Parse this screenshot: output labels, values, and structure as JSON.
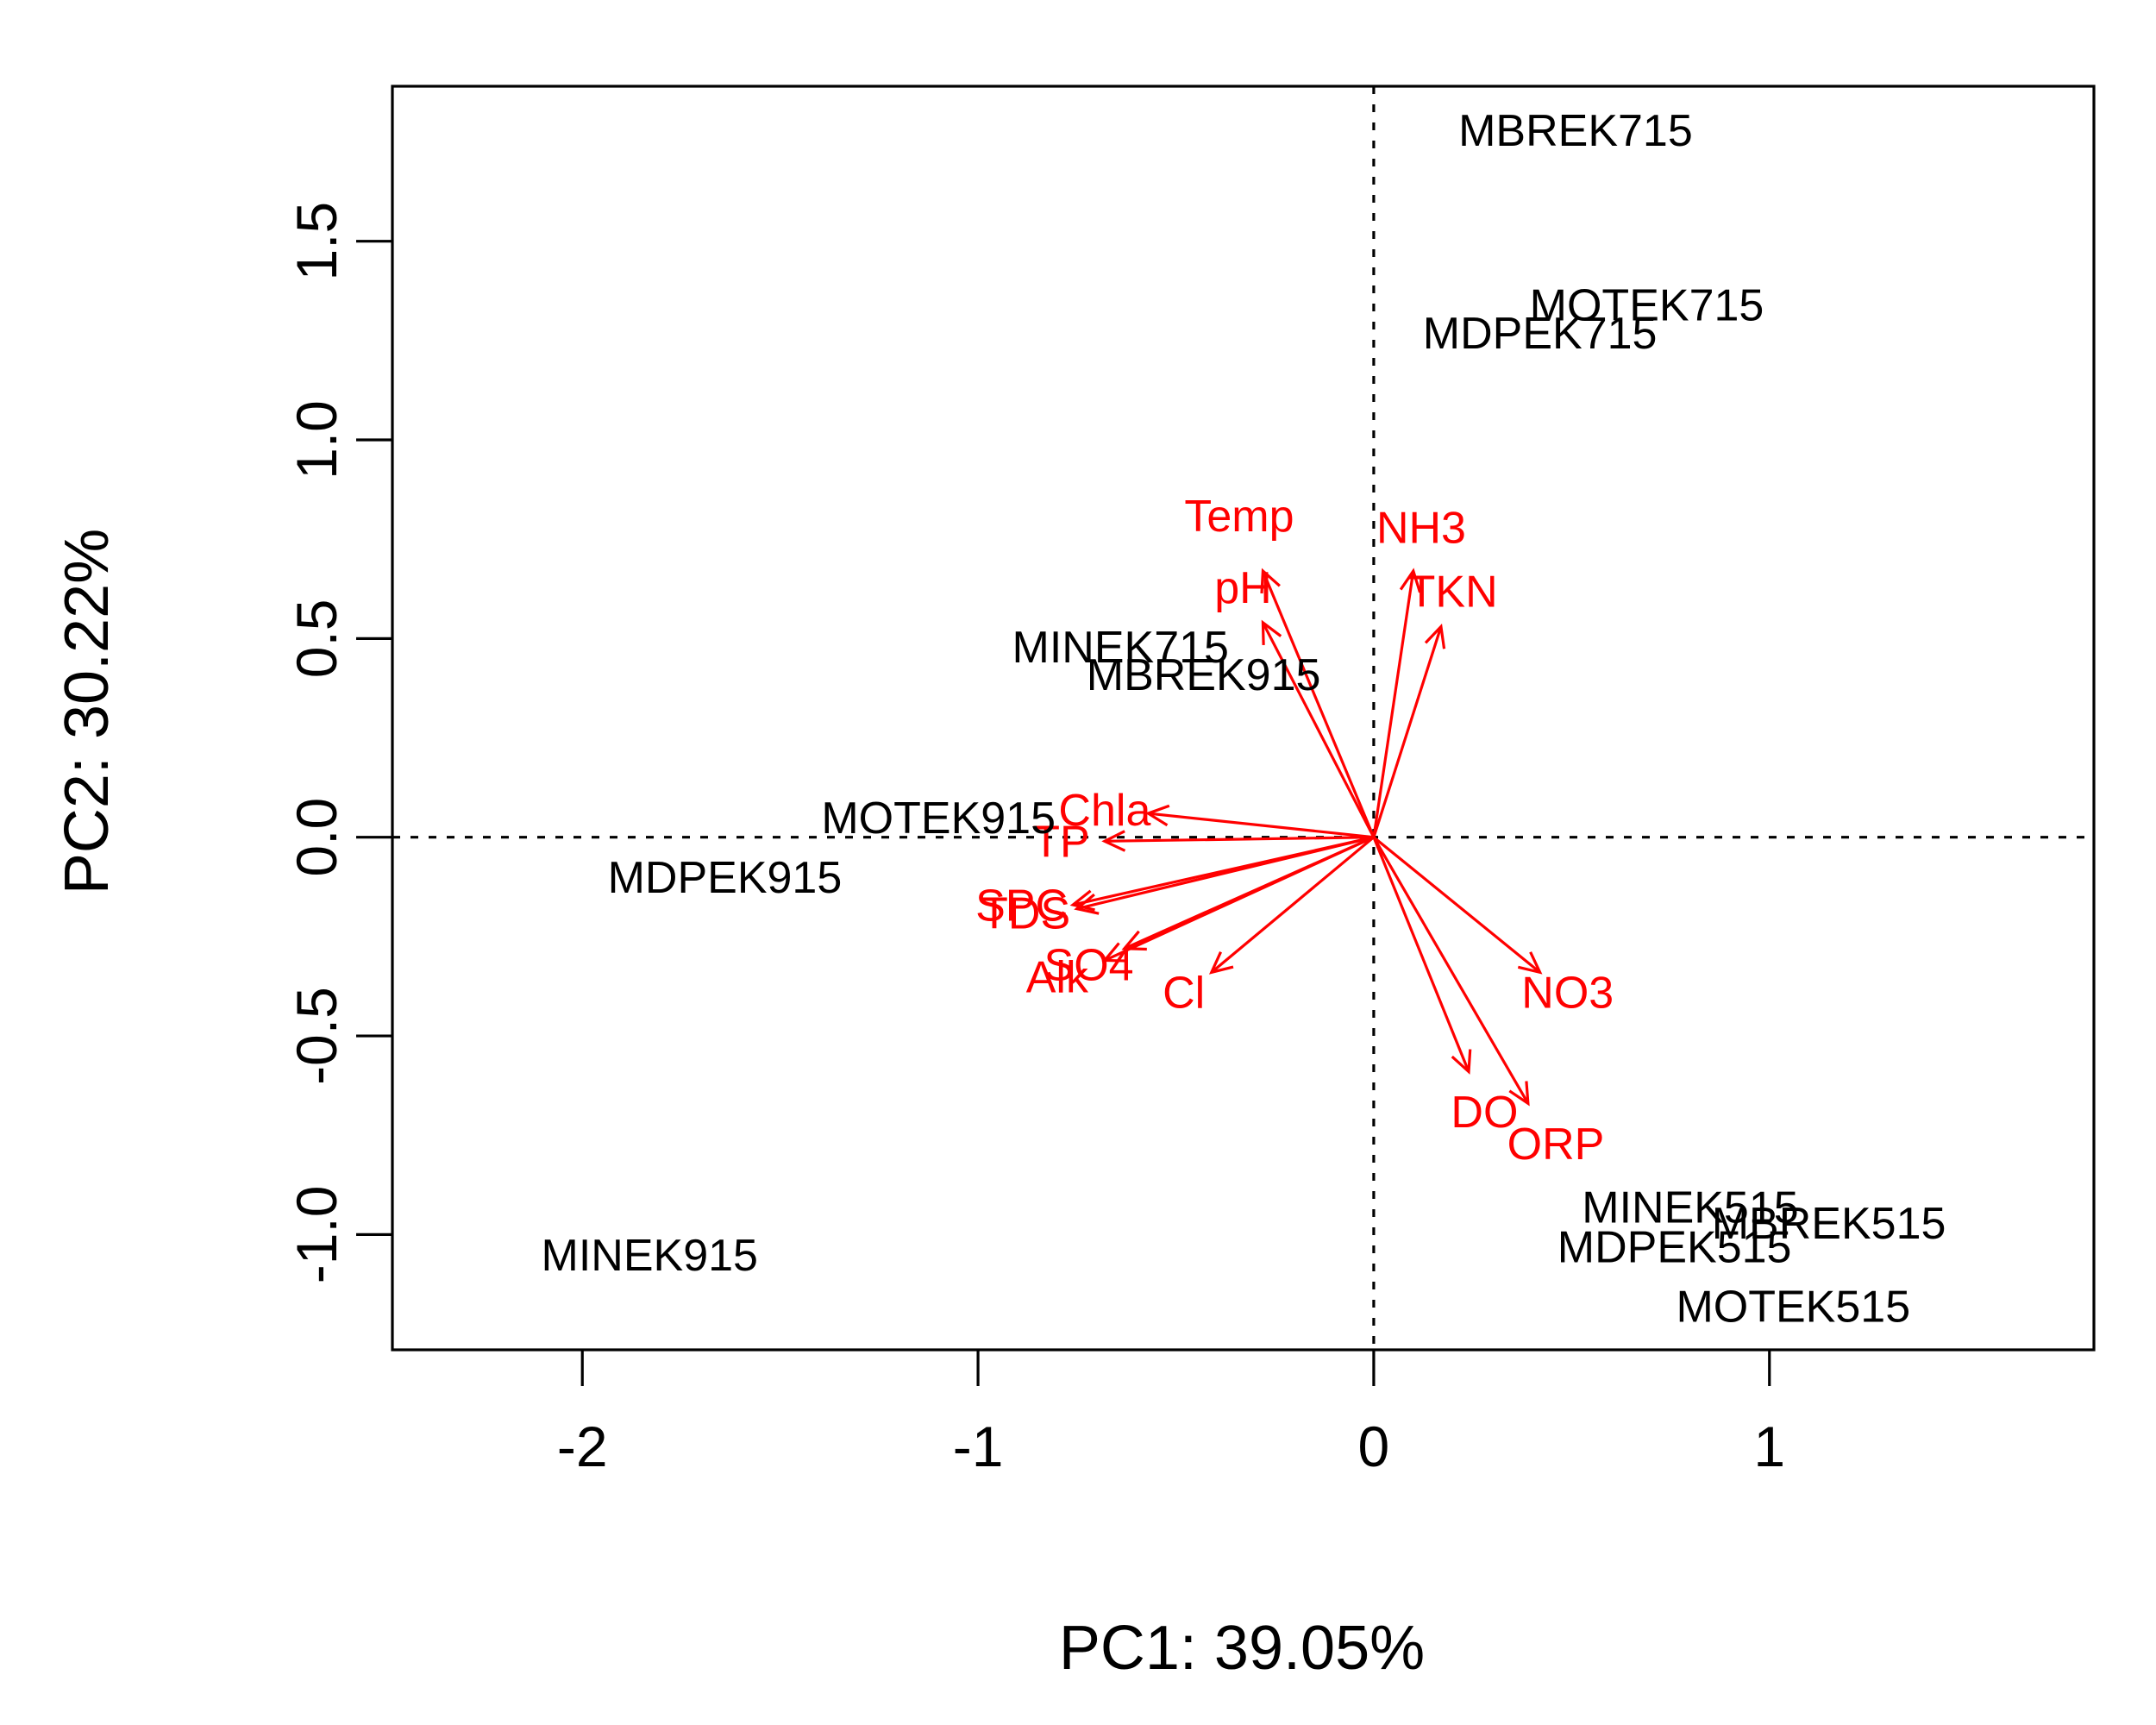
{
  "chart_data": {
    "type": "scatter",
    "subtype": "pca-biplot",
    "title": "",
    "xlabel": "PC1: 39.05%",
    "ylabel": "PC2: 30.22%",
    "xlim": [
      -2.48,
      1.82
    ],
    "ylim": [
      -1.29,
      1.89
    ],
    "x_ticks": [
      -2,
      -1,
      0,
      1
    ],
    "x_tick_labels": [
      "-2",
      "-1",
      "0",
      "1"
    ],
    "y_ticks": [
      -1.0,
      -0.5,
      0.0,
      0.5,
      1.0,
      1.5
    ],
    "y_tick_labels": [
      "-1.0",
      "-0.5",
      "0.0",
      "0.5",
      "1.0",
      "1.5"
    ],
    "reference_lines": {
      "x": 0,
      "y": 0,
      "style": "dotted"
    },
    "grid": false,
    "colors": {
      "samples": "#000000",
      "variables": "#ff0000"
    },
    "samples": [
      {
        "label": "MBREK715",
        "x": 0.51,
        "y": 1.77
      },
      {
        "label": "MOTEK715",
        "x": 0.69,
        "y": 1.33
      },
      {
        "label": "MDPEK715",
        "x": 0.42,
        "y": 1.26
      },
      {
        "label": "MINEK715",
        "x": -0.64,
        "y": 0.47
      },
      {
        "label": "MBREK915",
        "x": -0.43,
        "y": 0.4
      },
      {
        "label": "MOTEK915",
        "x": -1.1,
        "y": 0.04
      },
      {
        "label": "MDPEK915",
        "x": -1.64,
        "y": -0.11
      },
      {
        "label": "MINEK915",
        "x": -1.83,
        "y": -1.06
      },
      {
        "label": "MINEK515",
        "x": 0.8,
        "y": -0.94
      },
      {
        "label": "MBREK515",
        "x": 1.15,
        "y": -0.98
      },
      {
        "label": "MDPEK515",
        "x": 0.76,
        "y": -1.04
      },
      {
        "label": "MOTEK515",
        "x": 1.06,
        "y": -1.19
      }
    ],
    "variables": [
      {
        "label": "Temp",
        "x": -0.28,
        "y": 0.67,
        "label_x": -0.34,
        "label_y": 0.8
      },
      {
        "label": "pH",
        "x": -0.28,
        "y": 0.54,
        "label_x": -0.33,
        "label_y": 0.62
      },
      {
        "label": "NH3",
        "x": 0.1,
        "y": 0.67,
        "label_x": 0.12,
        "label_y": 0.77
      },
      {
        "label": "TKN",
        "x": 0.17,
        "y": 0.53,
        "label_x": 0.2,
        "label_y": 0.61
      },
      {
        "label": "Chla",
        "x": -0.57,
        "y": 0.06,
        "label_x": -0.68,
        "label_y": 0.06
      },
      {
        "label": "TP",
        "x": -0.68,
        "y": -0.01,
        "label_x": -0.79,
        "label_y": -0.02
      },
      {
        "label": "SPC",
        "x": -0.76,
        "y": -0.17,
        "label_x": -0.89,
        "label_y": -0.18
      },
      {
        "label": "TDS",
        "x": -0.75,
        "y": -0.18,
        "label_x": -0.88,
        "label_y": -0.2
      },
      {
        "label": "SO4",
        "x": -0.63,
        "y": -0.28,
        "label_x": -0.72,
        "label_y": -0.33
      },
      {
        "label": "Alk",
        "x": -0.68,
        "y": -0.31,
        "label_x": -0.8,
        "label_y": -0.36
      },
      {
        "label": "Cl",
        "x": -0.41,
        "y": -0.34,
        "label_x": -0.48,
        "label_y": -0.4
      },
      {
        "label": "NO3",
        "x": 0.42,
        "y": -0.34,
        "label_x": 0.49,
        "label_y": -0.4
      },
      {
        "label": "DO",
        "x": 0.24,
        "y": -0.59,
        "label_x": 0.28,
        "label_y": -0.7
      },
      {
        "label": "ORP",
        "x": 0.39,
        "y": -0.67,
        "label_x": 0.46,
        "label_y": -0.78
      }
    ]
  }
}
